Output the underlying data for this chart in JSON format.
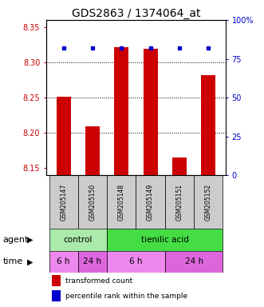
{
  "title": "GDS2863 / 1374064_at",
  "samples": [
    "GSM205147",
    "GSM205150",
    "GSM205148",
    "GSM205149",
    "GSM205151",
    "GSM205152"
  ],
  "bar_values": [
    8.251,
    8.209,
    8.322,
    8.319,
    8.165,
    8.282
  ],
  "percentile_pct": [
    82,
    82,
    82,
    82,
    82,
    82
  ],
  "ylim_left": [
    8.14,
    8.36
  ],
  "ylim_right": [
    0,
    100
  ],
  "yticks_left": [
    8.15,
    8.2,
    8.25,
    8.3,
    8.35
  ],
  "yticks_right": [
    0,
    25,
    50,
    75,
    100
  ],
  "ytick_labels_right": [
    "0",
    "25",
    "50",
    "75",
    "100%"
  ],
  "hgrid_lines": [
    8.2,
    8.25,
    8.3
  ],
  "bar_color": "#cc0000",
  "dot_color": "#0000cc",
  "bar_width": 0.5,
  "agent_labels": [
    {
      "label": "control",
      "start": 0,
      "end": 2,
      "color": "#aaeaaa"
    },
    {
      "label": "tienilic acid",
      "start": 2,
      "end": 6,
      "color": "#44dd44"
    }
  ],
  "time_labels": [
    {
      "label": "6 h",
      "start": 0,
      "end": 1,
      "color": "#ee88ee"
    },
    {
      "label": "24 h",
      "start": 1,
      "end": 2,
      "color": "#dd66dd"
    },
    {
      "label": "6 h",
      "start": 2,
      "end": 4,
      "color": "#ee88ee"
    },
    {
      "label": "24 h",
      "start": 4,
      "end": 6,
      "color": "#dd66dd"
    }
  ],
  "legend_bar_color": "#cc0000",
  "legend_dot_color": "#0000cc",
  "legend_text1": "transformed count",
  "legend_text2": "percentile rank within the sample",
  "agent_row_label": "agent",
  "time_row_label": "time",
  "title_fontsize": 10,
  "tick_fontsize": 7,
  "sample_fontsize": 5.5,
  "label_fontsize": 8,
  "row_fontsize": 7.5,
  "axis_label_color_left": "#cc0000",
  "axis_label_color_right": "#0000cc",
  "sample_bg": "#cccccc"
}
